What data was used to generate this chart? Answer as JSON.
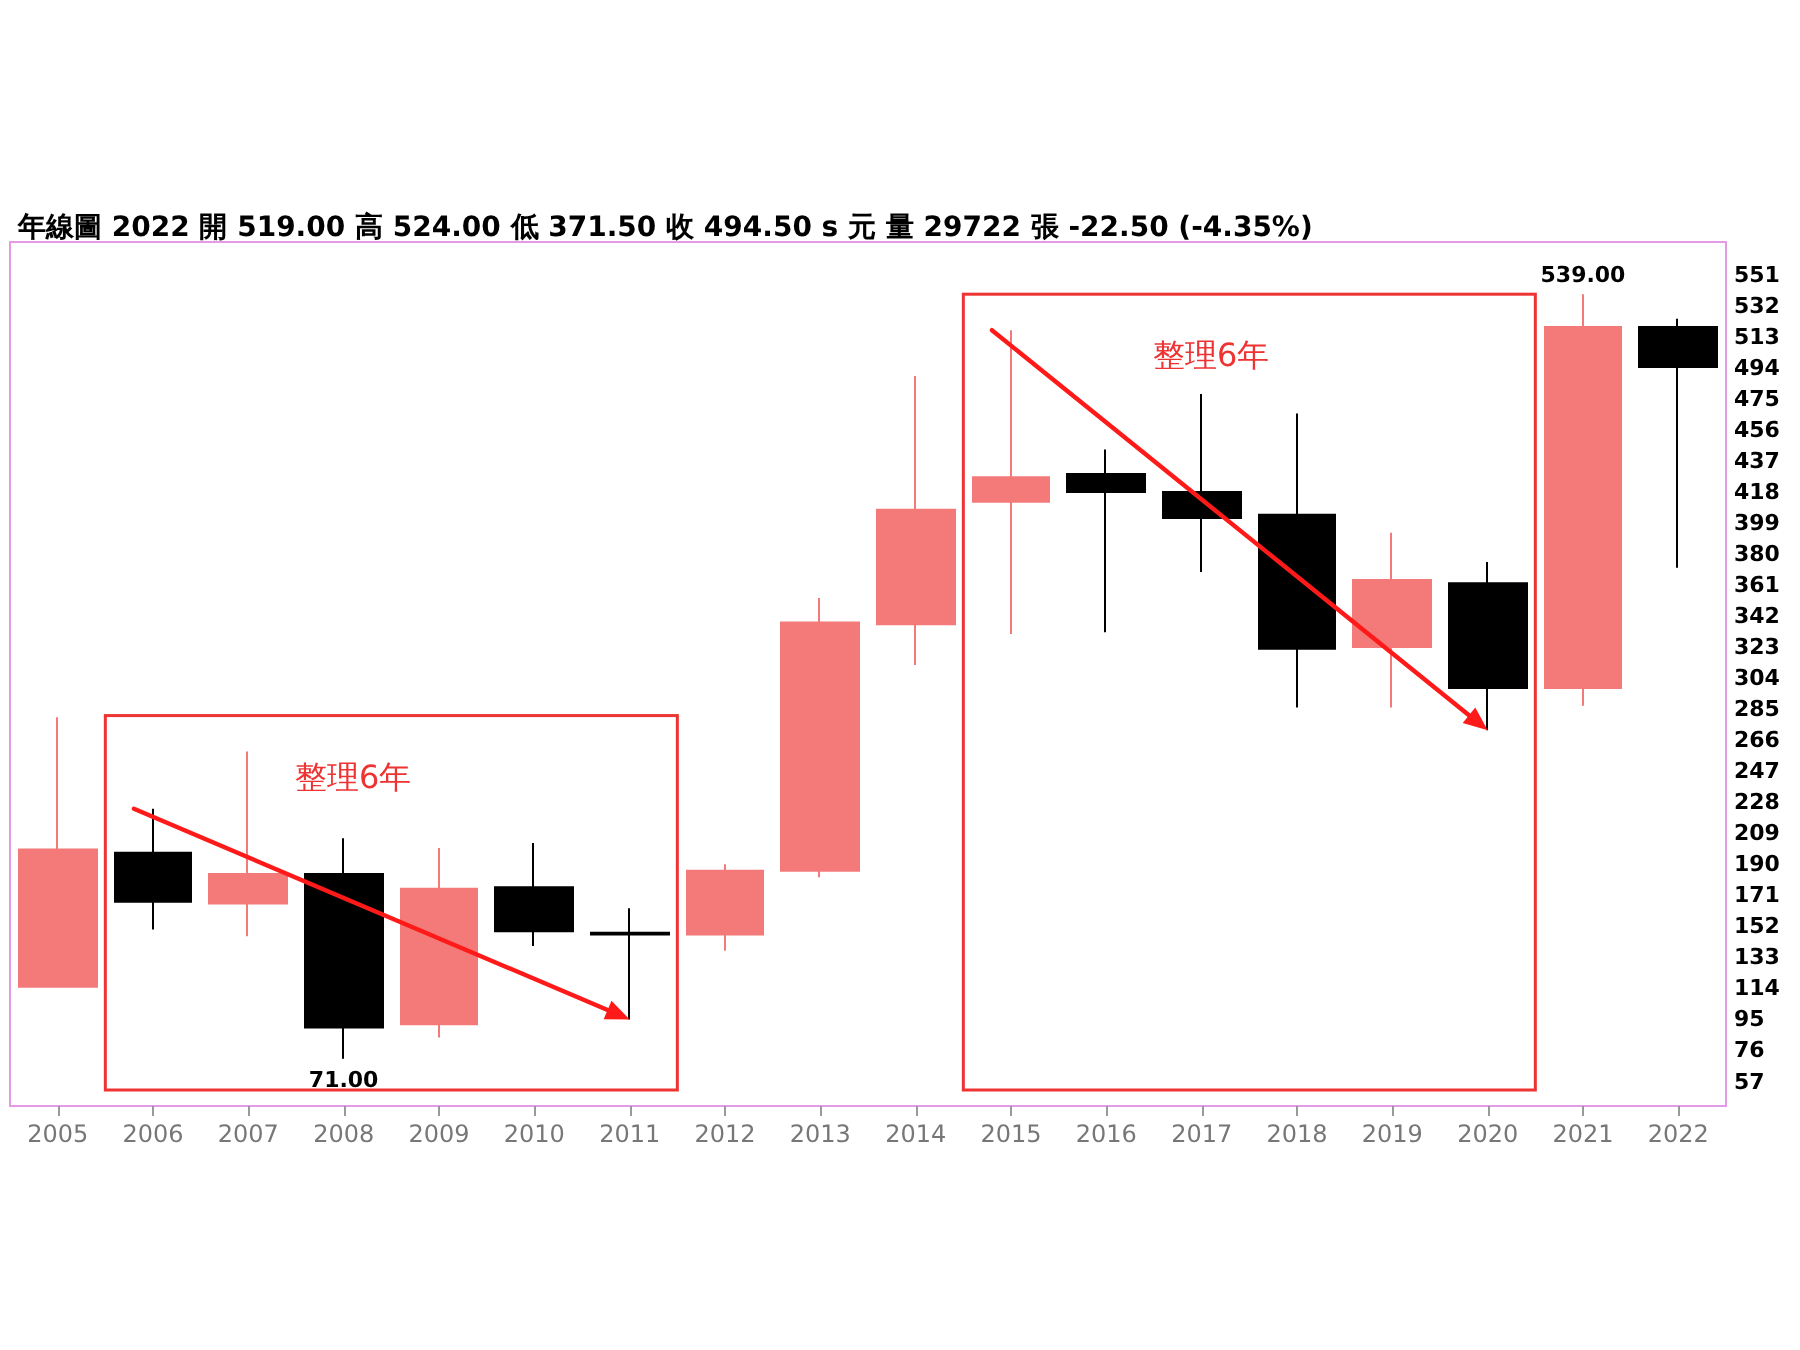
{
  "chart_data": {
    "type": "candlestick",
    "title": "年線圖 2022 開 519.00 高 524.00 低 371.50 收 494.50 s 元 量 29722 張 -22.50 (-4.35%)",
    "categories": [
      "2005",
      "2006",
      "2007",
      "2008",
      "2009",
      "2010",
      "2011",
      "2012",
      "2013",
      "2014",
      "2015",
      "2016",
      "2017",
      "2018",
      "2019",
      "2020",
      "2021",
      "2022"
    ],
    "ohlc": [
      [
        115,
        280,
        115,
        199
      ],
      [
        197,
        224,
        150,
        167
      ],
      [
        166,
        259,
        146,
        184
      ],
      [
        184,
        206,
        71,
        90
      ],
      [
        92,
        200,
        84,
        175
      ],
      [
        176,
        203,
        140,
        149
      ],
      [
        148,
        163,
        95,
        147
      ],
      [
        147,
        190,
        137,
        186
      ],
      [
        186,
        353,
        182,
        338
      ],
      [
        337,
        489,
        312,
        407
      ],
      [
        412,
        517,
        331,
        427
      ],
      [
        429,
        444,
        332,
        418
      ],
      [
        418,
        478,
        369,
        402
      ],
      [
        404,
        466,
        286,
        322
      ],
      [
        323,
        393,
        286,
        364
      ],
      [
        362,
        375,
        272,
        298
      ],
      [
        298,
        539,
        287,
        519
      ],
      [
        519,
        524,
        371.5,
        494.5
      ]
    ],
    "colors": [
      "#f47a7a",
      "#000000",
      "#f47a7a",
      "#000000",
      "#f47a7a",
      "#000000",
      "#000000",
      "#f47a7a",
      "#f47a7a",
      "#f47a7a",
      "#f47a7a",
      "#000000",
      "#000000",
      "#000000",
      "#f47a7a",
      "#000000",
      "#f47a7a",
      "#000000"
    ],
    "ylim": [
      42,
      571
    ],
    "yticks": [
      57,
      76,
      95,
      114,
      133,
      152,
      171,
      190,
      209,
      228,
      247,
      266,
      285,
      304,
      323,
      342,
      361,
      380,
      399,
      418,
      437,
      456,
      475,
      494,
      513,
      532,
      551
    ],
    "grid": false,
    "annotations": [
      "整理6年",
      "整理6年",
      {
        "text": "71.00",
        "x": "2008",
        "y": 71
      },
      {
        "text": "539.00",
        "x": "2021",
        "y": 539
      }
    ]
  }
}
